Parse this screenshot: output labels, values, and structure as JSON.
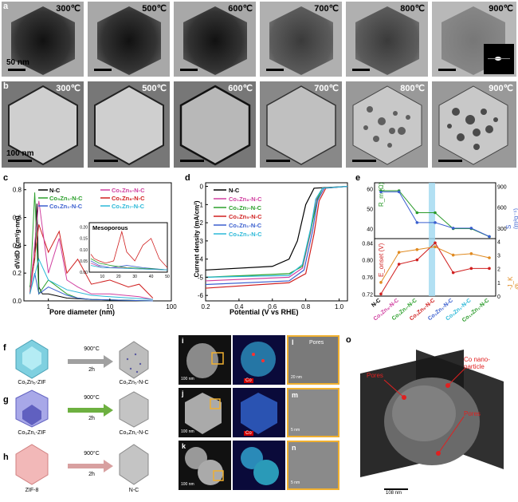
{
  "panel_a": {
    "label": "a",
    "temps": [
      "300℃",
      "500℃",
      "600℃",
      "700℃",
      "800℃",
      "900℃"
    ],
    "scale": "50 nm"
  },
  "panel_b": {
    "label": "b",
    "temps": [
      "300℃",
      "500℃",
      "600℃",
      "700℃",
      "800℃",
      "900℃"
    ],
    "scale": "100 nm"
  },
  "panel_c": {
    "label": "c",
    "ylabel": "dV/dD (cm³/g·nm)",
    "xlabel": "Pore diameter (nm)",
    "yticks": [
      "0.0",
      "0.2",
      "0.4",
      "0.6",
      "0.8"
    ],
    "xticks": [
      "1",
      "10",
      "100"
    ],
    "legend": [
      "N-C",
      "Co₅Zn₁-N-C",
      "Co₁Zn₁-N-C",
      "Co₁Zn₅-N-C",
      "Co₁Zn₈-N-C",
      "Co₁Zn₇-N-C"
    ],
    "inset_title": "Mesoporous",
    "inset_yticks": [
      "0.00",
      "0.05",
      "0.10",
      "0.15",
      "0.20"
    ],
    "inset_xticks": [
      "10",
      "20",
      "30",
      "40",
      "50"
    ]
  },
  "panel_d": {
    "label": "d",
    "ylabel": "Current density (mA/cm²)",
    "xlabel": "Potential (V vs RHE)",
    "yticks": [
      "0",
      "-1",
      "-2",
      "-3",
      "-4",
      "-5",
      "-6"
    ],
    "xticks": [
      "0.2",
      "0.4",
      "0.6",
      "0.8",
      "1.0"
    ],
    "legend": [
      "N-C",
      "Co₁Zn₈-N-C",
      "Co₁Zn₇-N-C",
      "Co₁Zn₅-N-C",
      "Co₁Zn₁-N-C",
      "Co₅Zn₁-N-C"
    ]
  },
  "panel_e": {
    "label": "e",
    "left_top_label": "R_m (Ω)",
    "right_top_label": "S (m²g⁻¹)",
    "left_bot_label": "E_onset (V)",
    "right_bot_label": "-J_K @ 0.85V",
    "top_left_ticks": [
      "40",
      "50",
      "60"
    ],
    "top_right_ticks": [
      "300",
      "600",
      "900"
    ],
    "bot_left_ticks": [
      "0.72",
      "0.76",
      "0.80",
      "0.84"
    ],
    "bot_right_ticks": [
      "0",
      "1",
      "2",
      "3",
      "4"
    ],
    "categories": [
      "N-C",
      "Co₁Zn₈-N-C",
      "Co₁Zn₇-N-C",
      "Co₁Zn₅-N-C",
      "Co₁Zn₁-N-C",
      "Co₅Zn₁-N-C",
      "Co₁₀Zn₁-N-C"
    ]
  },
  "schemes": {
    "f": {
      "label": "f",
      "left": "Co₁Zn₅-ZIF",
      "right": "Co₁Zn₅-N-C",
      "arrow": "900°C",
      "time": "2h"
    },
    "g": {
      "label": "g",
      "left": "Co₅Zn₁-ZIF",
      "right": "Co₅Zn₁-N-C",
      "arrow": "900°C",
      "time": "2h"
    },
    "h": {
      "label": "h",
      "left": "ZIF-8",
      "right": "N-C",
      "arrow": "900°C",
      "time": "2h"
    }
  },
  "em": {
    "i": {
      "label": "i",
      "scale": "100 nm"
    },
    "j": {
      "label": "j",
      "scale": "100 nm"
    },
    "k": {
      "label": "k",
      "scale": "100 nm"
    },
    "l": {
      "label": "l",
      "scale": "20 nm",
      "annot": "Pores"
    },
    "m": {
      "label": "m",
      "scale": "5 nm"
    },
    "n": {
      "label": "n",
      "scale": "5 nm"
    },
    "co_tag": "Co"
  },
  "panel_o": {
    "label": "o",
    "pores1": "Pores",
    "pores2": "Pores",
    "co": "Co nano-\nparticle",
    "scale": "108 nm"
  },
  "chart_data": [
    {
      "type": "line",
      "title": "",
      "xlabel": "Pore diameter (nm)",
      "ylabel": "dV/dD (cm3/g·nm)",
      "xscale": "log",
      "xlim": [
        0.4,
        100
      ],
      "ylim": [
        0,
        0.85
      ],
      "series": [
        {
          "name": "N-C",
          "x": [
            0.5,
            0.6,
            0.65,
            0.7,
            0.8,
            1,
            2,
            5,
            50
          ],
          "y": [
            0.1,
            0.3,
            0.7,
            0.1,
            0.05,
            0.05,
            0.02,
            0.01,
            0.0
          ]
        },
        {
          "name": "Co₅Zn₁-N-C",
          "x": [
            0.5,
            0.6,
            0.7,
            1,
            2,
            3,
            5,
            50
          ],
          "y": [
            0.05,
            0.78,
            0.05,
            0.15,
            0.05,
            0.02,
            0.01,
            0.0
          ]
        },
        {
          "name": "Co₁Zn₁-N-C",
          "x": [
            0.5,
            0.6,
            0.7,
            1,
            2,
            3,
            5,
            50
          ],
          "y": [
            0.05,
            0.2,
            0.05,
            0.1,
            0.04,
            0.02,
            0.01,
            0.0
          ]
        },
        {
          "name": "Co₁Zn₈-N-C",
          "x": [
            0.5,
            0.7,
            1,
            1.5,
            2,
            3,
            5,
            10,
            20,
            30,
            50
          ],
          "y": [
            0.05,
            0.55,
            0.35,
            0.5,
            0.2,
            0.3,
            0.12,
            0.15,
            0.1,
            0.12,
            0.02
          ]
        },
        {
          "name": "Co₁Zn₅-N-C",
          "x": [
            0.5,
            0.7,
            1,
            1.5,
            2,
            3,
            5,
            10,
            30,
            50
          ],
          "y": [
            0.05,
            0.72,
            0.2,
            0.45,
            0.15,
            0.1,
            0.05,
            0.05,
            0.03,
            0.01
          ]
        },
        {
          "name": "Co₁Zn₇-N-C",
          "x": [
            0.5,
            0.7,
            1,
            2,
            5,
            10,
            50
          ],
          "y": [
            0.05,
            0.3,
            0.15,
            0.08,
            0.04,
            0.03,
            0.01
          ]
        }
      ]
    },
    {
      "type": "line",
      "title": "",
      "xlabel": "Potential (V vs RHE)",
      "ylabel": "Current density (mA/cm2)",
      "xlim": [
        0.2,
        1.05
      ],
      "ylim": [
        -6.3,
        0.2
      ],
      "series": [
        {
          "name": "N-C",
          "x": [
            0.2,
            0.6,
            0.7,
            0.75,
            0.8,
            0.85,
            1.05
          ],
          "y": [
            -4.6,
            -4.4,
            -4.0,
            -3.0,
            -1.0,
            -0.1,
            0.0
          ]
        },
        {
          "name": "Co₁Zn₈-N-C",
          "x": [
            0.2,
            0.7,
            0.78,
            0.83,
            0.86,
            0.9,
            1.05
          ],
          "y": [
            -5.2,
            -5.0,
            -4.5,
            -2.5,
            -0.8,
            -0.1,
            0.0
          ]
        },
        {
          "name": "Co₁Zn₇-N-C",
          "x": [
            0.2,
            0.7,
            0.78,
            0.83,
            0.87,
            0.9,
            1.05
          ],
          "y": [
            -5.0,
            -4.8,
            -4.4,
            -2.4,
            -0.7,
            -0.1,
            0.0
          ]
        },
        {
          "name": "Co₁Zn₅-N-C",
          "x": [
            0.2,
            0.7,
            0.8,
            0.85,
            0.88,
            0.92,
            1.05
          ],
          "y": [
            -5.6,
            -5.3,
            -4.8,
            -2.6,
            -0.8,
            -0.1,
            0.0
          ]
        },
        {
          "name": "Co₁Zn₁-N-C",
          "x": [
            0.2,
            0.7,
            0.79,
            0.84,
            0.87,
            0.91,
            1.05
          ],
          "y": [
            -5.4,
            -5.2,
            -4.6,
            -2.5,
            -0.8,
            -0.1,
            0.0
          ]
        },
        {
          "name": "Co₅Zn₁-N-C",
          "x": [
            0.2,
            0.7,
            0.78,
            0.83,
            0.86,
            0.9,
            1.05
          ],
          "y": [
            -5.0,
            -4.9,
            -4.3,
            -2.3,
            -0.7,
            -0.1,
            0.0
          ]
        }
      ]
    },
    {
      "type": "line",
      "title": "",
      "categories": [
        "N-C",
        "Co₁Zn₈-N-C",
        "Co₁Zn₇-N-C",
        "Co₁Zn₅-N-C",
        "Co₁Zn₁-N-C",
        "Co₅Zn₁-N-C",
        "Co₁₀Zn₁-N-C"
      ],
      "series": [
        {
          "name": "R_m (Ω)",
          "values": [
            59,
            59,
            48,
            48,
            40,
            40,
            36
          ]
        },
        {
          "name": "S (m2 g-1)",
          "values": [
            820,
            820,
            380,
            380,
            300,
            300,
            180
          ]
        },
        {
          "name": "E_onset (V)",
          "values": [
            0.72,
            0.79,
            0.8,
            0.84,
            0.77,
            0.78,
            0.78
          ]
        },
        {
          "name": "-J_K @ 0.85V",
          "values": [
            1.0,
            3.2,
            3.4,
            3.6,
            3.0,
            3.1,
            2.8
          ]
        }
      ]
    }
  ]
}
